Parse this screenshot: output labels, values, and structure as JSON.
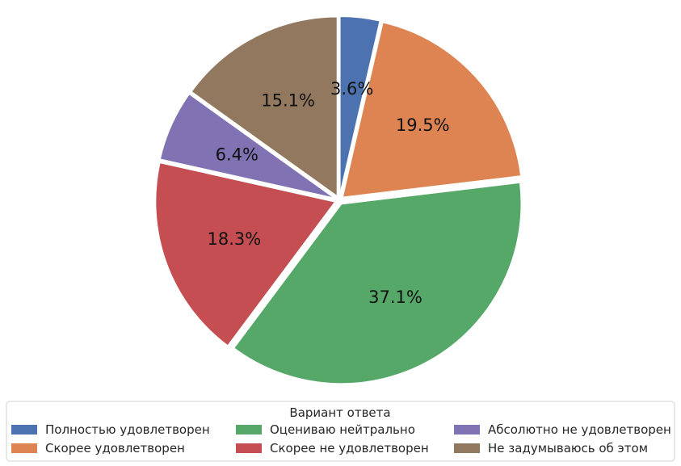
{
  "chart_data": {
    "type": "pie",
    "title": "",
    "legend_title": "Вариант ответа",
    "legend_placement": "bottom",
    "start_angle_deg": 90,
    "direction": "clockwise",
    "slices": [
      {
        "label": "Полностью удовлетворен",
        "value": 3.6,
        "pct_label": "3.6%",
        "color": "#4c72b0"
      },
      {
        "label": "Скорее удовлетворен",
        "value": 19.5,
        "pct_label": "19.5%",
        "color": "#dd8452"
      },
      {
        "label": "Оцениваю нейтрально",
        "value": 37.1,
        "pct_label": "37.1%",
        "color": "#55a868"
      },
      {
        "label": "Скорее не удовлетворен",
        "value": 18.3,
        "pct_label": "18.3%",
        "color": "#c44e52"
      },
      {
        "label": "Абсолютно не удовлетворен",
        "value": 6.4,
        "pct_label": "6.4%",
        "color": "#8172b3"
      },
      {
        "label": "Не задумываюсь об этом",
        "value": 15.1,
        "pct_label": "15.1%",
        "color": "#937860"
      }
    ]
  }
}
